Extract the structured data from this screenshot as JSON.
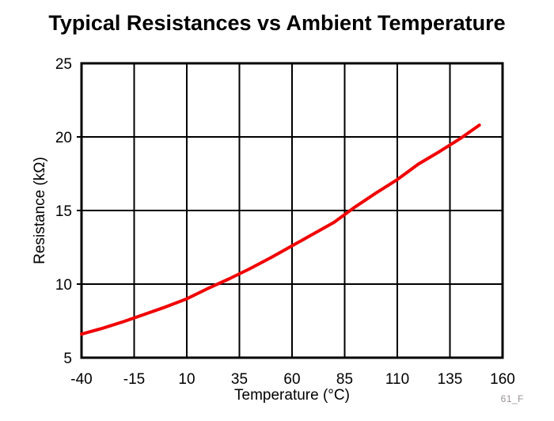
{
  "figure_note": "61_F",
  "chart_data": {
    "type": "line",
    "title": "Typical Resistances vs Ambient Temperature",
    "xlabel": "Temperature (°C)",
    "ylabel": "Resistance (kΩ)",
    "xlim": [
      -40,
      160
    ],
    "ylim": [
      5,
      25
    ],
    "x_ticks": [
      -40,
      -15,
      10,
      35,
      60,
      85,
      110,
      135,
      160
    ],
    "y_ticks": [
      5,
      10,
      15,
      20,
      25
    ],
    "grid": true,
    "legend": "none",
    "line_color": "#f00000",
    "frame_color": "#000000",
    "series": [
      {
        "name": "Typical Resistance",
        "x": [
          -40,
          -30,
          -20,
          -10,
          0,
          10,
          20,
          30,
          40,
          50,
          60,
          70,
          80,
          90,
          100,
          110,
          120,
          130,
          140,
          149
        ],
        "y": [
          6.6,
          7.0,
          7.45,
          7.95,
          8.45,
          9.0,
          9.7,
          10.35,
          11.05,
          11.8,
          12.6,
          13.4,
          14.2,
          15.25,
          16.2,
          17.1,
          18.15,
          19.0,
          19.9,
          20.8
        ]
      }
    ]
  }
}
